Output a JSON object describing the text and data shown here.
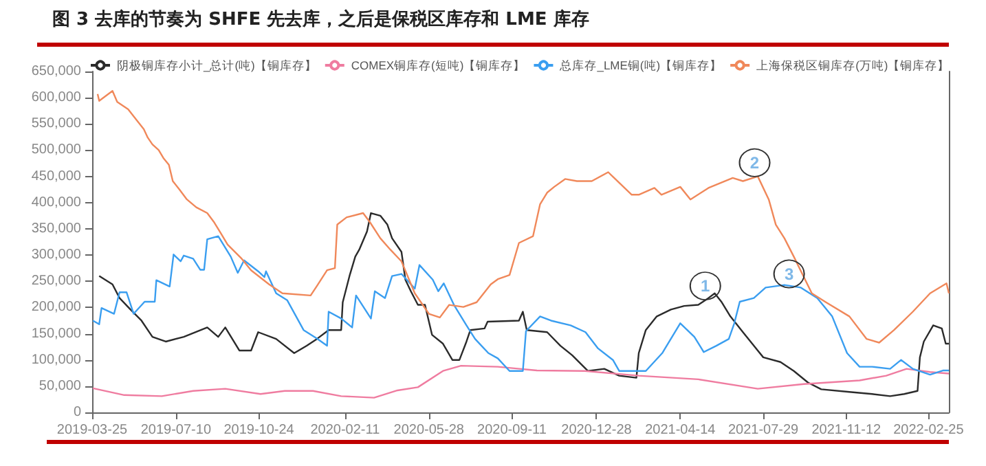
{
  "chart_data": {
    "type": "line",
    "title": "图 3 去库的节奏为 SHFE 先去库，之后是保税区库存和 LME 库存",
    "xlim": [
      "2019-03-25",
      "2022-03-23"
    ],
    "xticks": [
      "2019-03-25",
      "2019-07-10",
      "2019-10-24",
      "2020-02-11",
      "2020-05-28",
      "2020-09-11",
      "2020-12-28",
      "2021-04-14",
      "2021-07-29",
      "2021-11-12",
      "2022-02-25"
    ],
    "ylim": [
      0,
      650000
    ],
    "yticks": [
      0,
      {
        "value": 50000,
        "label": "50,000"
      },
      {
        "value": 100000,
        "label": "100,000"
      },
      {
        "value": 150000,
        "label": "150,000"
      },
      {
        "value": 200000,
        "label": "200,000"
      },
      {
        "value": 250000,
        "label": "250,000"
      },
      {
        "value": 300000,
        "label": "300,000"
      },
      {
        "value": 350000,
        "label": "350,000"
      },
      {
        "value": 400000,
        "label": "400,000"
      },
      {
        "value": 450000,
        "label": "450,000"
      },
      {
        "value": 500000,
        "label": "500,000"
      },
      {
        "value": 550000,
        "label": "550,000"
      },
      {
        "value": 600000,
        "label": "600,000"
      },
      {
        "value": 650000,
        "label": "650,000"
      }
    ],
    "grid": false,
    "legend": "top",
    "marker": "none",
    "series": [
      {
        "name": "阴极铜库存小计_总计(吨)【铜库存】",
        "color": "#2b2b2b",
        "x": [
          "2019-04-03",
          "2019-04-20",
          "2019-04-29",
          "2019-05-13",
          "2019-05-27",
          "2019-06-10",
          "2019-06-27",
          "2019-07-20",
          "2019-08-19",
          "2019-09-02",
          "2019-09-11",
          "2019-09-29",
          "2019-10-14",
          "2019-10-23",
          "2019-11-15",
          "2019-12-08",
          "2019-12-24",
          "2020-01-06",
          "2020-01-21",
          "2020-02-06",
          "2020-02-08",
          "2020-02-17",
          "2020-02-24",
          "2020-02-29",
          "2020-03-10",
          "2020-03-15",
          "2020-03-27",
          "2020-04-05",
          "2020-04-11",
          "2020-04-23",
          "2020-04-28",
          "2020-05-05",
          "2020-05-14",
          "2020-05-23",
          "2020-06-01",
          "2020-06-15",
          "2020-06-27",
          "2020-07-06",
          "2020-07-15",
          "2020-07-20",
          "2020-08-07",
          "2020-08-11",
          "2020-09-20",
          "2020-09-25",
          "2020-09-30",
          "2020-10-26",
          "2020-11-12",
          "2020-11-27",
          "2020-12-17",
          "2021-01-07",
          "2021-01-26",
          "2021-02-17",
          "2021-02-20",
          "2021-03-01",
          "2021-03-15",
          "2021-04-02",
          "2021-04-19",
          "2021-05-07",
          "2021-05-20",
          "2021-05-28",
          "2021-06-06",
          "2021-06-17",
          "2021-07-03",
          "2021-07-17",
          "2021-07-29",
          "2021-08-20",
          "2021-09-06",
          "2021-09-24",
          "2021-10-11",
          "2021-11-16",
          "2021-12-15",
          "2022-01-07",
          "2022-01-25",
          "2022-02-11",
          "2022-02-14",
          "2022-02-19",
          "2022-03-03",
          "2022-03-14",
          "2022-03-19",
          "2022-03-23"
        ],
        "values": [
          260000,
          244000,
          218000,
          196000,
          175000,
          144000,
          135000,
          144000,
          162000,
          144000,
          162000,
          118000,
          118000,
          153000,
          140000,
          113000,
          127000,
          140000,
          157000,
          157000,
          210000,
          262000,
          297000,
          310000,
          345000,
          380000,
          375000,
          358000,
          332000,
          306000,
          253000,
          231000,
          205000,
          205000,
          148000,
          131000,
          100000,
          100000,
          135000,
          157000,
          160000,
          173000,
          175000,
          192000,
          157000,
          153000,
          127000,
          109000,
          79000,
          83000,
          70000,
          66000,
          113000,
          157000,
          183000,
          196000,
          203000,
          205000,
          218000,
          227000,
          210000,
          183000,
          153000,
          127000,
          105000,
          96000,
          79000,
          57000,
          44000,
          39000,
          35000,
          31000,
          35000,
          41000,
          105000,
          135000,
          166000,
          160000,
          131000,
          131000
        ]
      },
      {
        "name": "COMEX铜库存(短吨)【铜库存】",
        "color": "#ef7ca0",
        "x": [
          "2019-03-26",
          "2019-05-05",
          "2019-06-22",
          "2019-08-01",
          "2019-09-11",
          "2019-10-26",
          "2019-11-26",
          "2020-01-01",
          "2020-02-06",
          "2020-03-19",
          "2020-04-18",
          "2020-05-14",
          "2020-06-15",
          "2020-07-08",
          "2020-08-24",
          "2020-10-13",
          "2020-12-13",
          "2021-02-20",
          "2021-05-07",
          "2021-07-22",
          "2021-09-19",
          "2021-11-29",
          "2022-01-02",
          "2022-01-28",
          "2022-02-27",
          "2022-03-23"
        ],
        "values": [
          46000,
          33000,
          31000,
          41000,
          45000,
          35000,
          41000,
          41000,
          31000,
          28000,
          42000,
          48000,
          79000,
          89000,
          87000,
          80000,
          79000,
          70000,
          63000,
          45000,
          54000,
          61000,
          70000,
          83000,
          77000,
          74000
        ]
      },
      {
        "name": "总库存_LME铜(吨)【铜库存】",
        "color": "#3a9ef0",
        "x": [
          "2019-03-26",
          "2019-04-03",
          "2019-04-06",
          "2019-04-22",
          "2019-04-29",
          "2019-05-08",
          "2019-05-17",
          "2019-05-31",
          "2019-06-13",
          "2019-06-15",
          "2019-07-02",
          "2019-07-07",
          "2019-07-16",
          "2019-07-20",
          "2019-08-01",
          "2019-08-10",
          "2019-08-15",
          "2019-08-19",
          "2019-09-02",
          "2019-09-09",
          "2019-09-18",
          "2019-09-27",
          "2019-10-05",
          "2019-10-23",
          "2019-10-31",
          "2019-11-02",
          "2019-11-15",
          "2019-11-29",
          "2019-12-20",
          "2020-01-06",
          "2020-01-19",
          "2020-01-21",
          "2020-02-06",
          "2020-02-20",
          "2020-02-25",
          "2020-03-15",
          "2020-03-20",
          "2020-04-02",
          "2020-04-11",
          "2020-04-23",
          "2020-05-10",
          "2020-05-16",
          "2020-06-02",
          "2020-06-09",
          "2020-06-16",
          "2020-06-29",
          "2020-07-15",
          "2020-07-26",
          "2020-08-12",
          "2020-08-24",
          "2020-09-08",
          "2020-09-25",
          "2020-09-29",
          "2020-10-17",
          "2020-10-31",
          "2020-11-25",
          "2020-12-14",
          "2020-12-30",
          "2021-01-18",
          "2021-01-26",
          "2021-03-01",
          "2021-03-22",
          "2021-04-14",
          "2021-05-02",
          "2021-05-14",
          "2021-05-30",
          "2021-06-15",
          "2021-06-22",
          "2021-06-29",
          "2021-07-17",
          "2021-08-01",
          "2021-08-25",
          "2021-09-15",
          "2021-10-06",
          "2021-10-25",
          "2021-11-13",
          "2021-11-29",
          "2021-12-15",
          "2022-01-07",
          "2022-01-21",
          "2022-02-05",
          "2022-02-27",
          "2022-03-16",
          "2022-03-23"
        ],
        "values": [
          175000,
          168000,
          199000,
          188000,
          229000,
          229000,
          188000,
          211000,
          211000,
          252000,
          240000,
          301000,
          288000,
          299000,
          293000,
          272000,
          272000,
          330000,
          336000,
          319000,
          297000,
          266000,
          290000,
          269000,
          258000,
          269000,
          227000,
          214000,
          157000,
          141000,
          127000,
          192000,
          179000,
          162000,
          223000,
          179000,
          231000,
          218000,
          260000,
          264000,
          236000,
          281000,
          253000,
          231000,
          246000,
          205000,
          166000,
          140000,
          113000,
          103000,
          79000,
          79000,
          155000,
          183000,
          175000,
          166000,
          153000,
          122000,
          100000,
          79000,
          79000,
          113000,
          170000,
          144000,
          115000,
          127000,
          140000,
          170000,
          211000,
          218000,
          238000,
          243000,
          238000,
          218000,
          183000,
          113000,
          87000,
          87000,
          83000,
          100000,
          83000,
          72000,
          80000,
          80000
        ]
      },
      {
        "name": "上海保税区铜库存(万吨)【铜库存】",
        "color": "#f0885a",
        "x": [
          "2019-04-01",
          "2019-04-03",
          "2019-04-20",
          "2019-04-26",
          "2019-05-10",
          "2019-05-21",
          "2019-05-30",
          "2019-06-04",
          "2019-06-10",
          "2019-06-18",
          "2019-06-24",
          "2019-07-01",
          "2019-07-06",
          "2019-07-15",
          "2019-07-24",
          "2019-08-05",
          "2019-08-19",
          "2019-08-28",
          "2019-09-06",
          "2019-09-14",
          "2019-10-02",
          "2019-10-14",
          "2019-11-06",
          "2019-11-23",
          "2019-12-29",
          "2020-01-06",
          "2020-01-19",
          "2020-01-29",
          "2020-02-01",
          "2020-02-13",
          "2020-03-05",
          "2020-03-14",
          "2020-03-27",
          "2020-04-09",
          "2020-04-23",
          "2020-05-10",
          "2020-05-28",
          "2020-06-11",
          "2020-06-23",
          "2020-07-11",
          "2020-07-28",
          "2020-08-15",
          "2020-08-24",
          "2020-09-08",
          "2020-09-20",
          "2020-10-08",
          "2020-10-17",
          "2020-10-26",
          "2020-11-04",
          "2020-11-18",
          "2020-12-03",
          "2020-12-22",
          "2021-01-12",
          "2021-01-21",
          "2021-02-11",
          "2021-02-20",
          "2021-03-12",
          "2021-03-21",
          "2021-04-14",
          "2021-04-27",
          "2021-05-20",
          "2021-06-20",
          "2021-07-03",
          "2021-07-22",
          "2021-08-05",
          "2021-08-14",
          "2021-08-25",
          "2021-09-06",
          "2021-09-29",
          "2021-10-17",
          "2021-11-16",
          "2021-12-08",
          "2021-12-24",
          "2022-01-12",
          "2022-02-05",
          "2022-02-27",
          "2022-03-20",
          "2022-03-23"
        ],
        "values": [
          607000,
          594000,
          613000,
          592000,
          578000,
          557000,
          540000,
          524000,
          511000,
          500000,
          485000,
          472000,
          441000,
          424000,
          406000,
          391000,
          380000,
          362000,
          340000,
          320000,
          293000,
          271000,
          244000,
          227000,
          223000,
          241000,
          271000,
          275000,
          358000,
          372000,
          380000,
          362000,
          332000,
          310000,
          288000,
          227000,
          188000,
          181000,
          205000,
          201000,
          210000,
          244000,
          254000,
          262000,
          323000,
          336000,
          397000,
          419000,
          430000,
          445000,
          441000,
          441000,
          458000,
          445000,
          415000,
          415000,
          428000,
          415000,
          430000,
          406000,
          428000,
          447000,
          441000,
          450000,
          406000,
          358000,
          332000,
          297000,
          227000,
          210000,
          183000,
          140000,
          133000,
          157000,
          192000,
          227000,
          246000,
          227000
        ]
      }
    ],
    "annotations": [
      {
        "text": "1",
        "x": "2021-05-16",
        "y": 241000
      },
      {
        "text": "2",
        "x": "2021-07-18",
        "y": 476000
      },
      {
        "text": "3",
        "x": "2021-08-31",
        "y": 264000
      }
    ]
  }
}
